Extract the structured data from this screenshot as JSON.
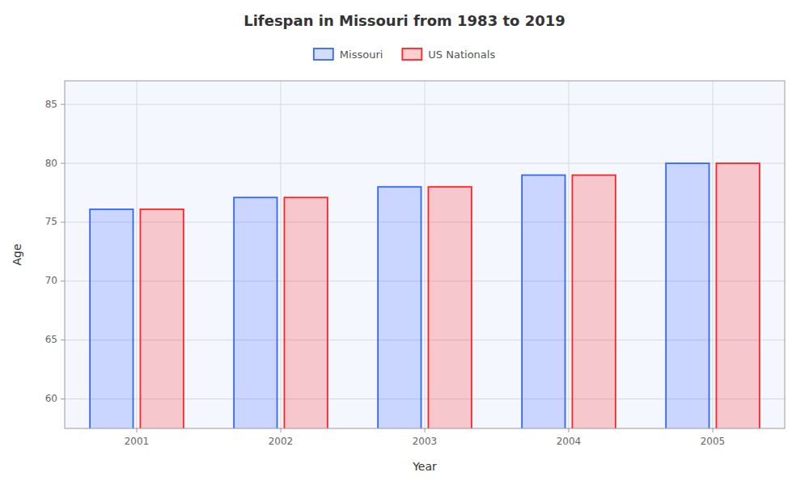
{
  "chart_data": {
    "type": "bar",
    "title": "Lifespan in Missouri from 1983 to 2019",
    "xlabel": "Year",
    "ylabel": "Age",
    "categories": [
      "2001",
      "2002",
      "2003",
      "2004",
      "2005"
    ],
    "series": [
      {
        "name": "Missouri",
        "color": "#3366ff",
        "values": [
          76.1,
          77.1,
          78.0,
          79.0,
          80.0
        ]
      },
      {
        "name": "US Nationals",
        "color": "#ff2222",
        "values": [
          76.1,
          77.1,
          78.0,
          79.0,
          80.0
        ]
      }
    ],
    "ylim": [
      57.5,
      87
    ],
    "yticks": [
      60,
      65,
      70,
      75,
      80,
      85
    ],
    "grid": true,
    "legend": "top"
  }
}
